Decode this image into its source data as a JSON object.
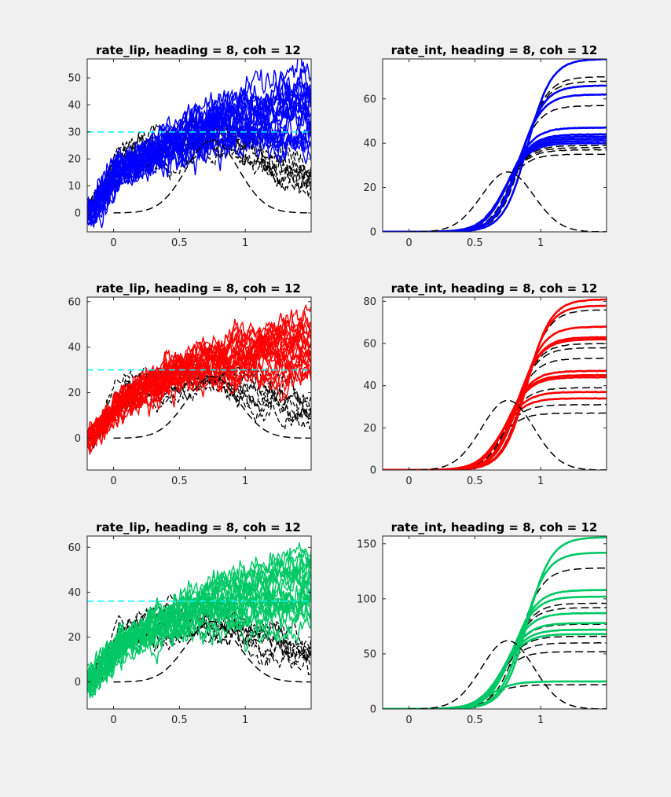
{
  "figure": {
    "background": "#f0f0f0",
    "axes_background": "#ffffff"
  },
  "chart_data": [
    {
      "id": "p11",
      "type": "line",
      "title": "rate_lip, heading = 8, coh = 12",
      "xlim": [
        -0.2,
        1.5
      ],
      "ylim": [
        -7,
        57
      ],
      "xticks": [
        0,
        0.5,
        1
      ],
      "xtick_labels": [
        "0",
        "0.5",
        "1"
      ],
      "yticks": [
        0,
        10,
        20,
        30,
        40,
        50
      ],
      "ytick_labels": [
        "0",
        "10",
        "20",
        "30",
        "40",
        "50"
      ],
      "grid": false,
      "series_color": "#0000ff",
      "threshold": {
        "y": 30,
        "color": "#00ffff",
        "style": "dashed"
      },
      "colored_traces": {
        "count": 22,
        "end_range": [
          28,
          56
        ],
        "noise": 4
      },
      "black_traces": {
        "count": 9,
        "peak": 30
      },
      "mean_curve": {
        "peak": 27,
        "peak_time": 0.75,
        "style": "dashed"
      }
    },
    {
      "id": "p12",
      "type": "line",
      "title": "rate_int, heading = 8, coh = 12",
      "xlim": [
        -0.2,
        1.5
      ],
      "ylim": [
        0,
        78
      ],
      "xticks": [
        0,
        0.5,
        1
      ],
      "xtick_labels": [
        "0",
        "0.5",
        "1"
      ],
      "yticks": [
        0,
        20,
        40,
        60
      ],
      "ytick_labels": [
        "0",
        "20",
        "40",
        "60"
      ],
      "grid": false,
      "series_color": "#0000ff",
      "colored_plateaus": [
        78,
        66,
        62,
        47,
        44,
        43,
        42,
        41,
        40
      ],
      "black_plateaus": [
        70,
        68,
        57,
        40,
        39,
        38,
        37,
        35
      ],
      "mean_curve": {
        "peak": 27,
        "peak_time": 0.75,
        "style": "dashed"
      }
    },
    {
      "id": "p21",
      "type": "line",
      "title": "rate_lip, heading = 8, coh = 12",
      "xlim": [
        -0.2,
        1.5
      ],
      "ylim": [
        -14,
        62
      ],
      "xticks": [
        0,
        0.5,
        1
      ],
      "xtick_labels": [
        "0",
        "0.5",
        "1"
      ],
      "yticks": [
        0,
        20,
        40,
        60
      ],
      "ytick_labels": [
        "0",
        "20",
        "40",
        "60"
      ],
      "grid": false,
      "series_color": "#ff0000",
      "threshold": {
        "y": 30,
        "color": "#00ffff",
        "style": "dashed"
      },
      "colored_traces": {
        "count": 22,
        "end_range": [
          30,
          60
        ],
        "noise": 4
      },
      "black_traces": {
        "count": 9,
        "peak": 30
      },
      "mean_curve": {
        "peak": 27,
        "peak_time": 0.75,
        "style": "dashed"
      }
    },
    {
      "id": "p22",
      "type": "line",
      "title": "rate_int, heading = 8, coh = 12",
      "xlim": [
        -0.2,
        1.5
      ],
      "ylim": [
        0,
        82
      ],
      "xticks": [
        0,
        0.5,
        1
      ],
      "xtick_labels": [
        "0",
        "0.5",
        "1"
      ],
      "yticks": [
        0,
        20,
        40,
        60,
        80
      ],
      "ytick_labels": [
        "0",
        "20",
        "40",
        "60",
        "80"
      ],
      "grid": false,
      "series_color": "#ff0000",
      "colored_plateaus": [
        81,
        78,
        68,
        63,
        62,
        47,
        45,
        44,
        37,
        34
      ],
      "black_plateaus": [
        76,
        60,
        58,
        53,
        39,
        31,
        27
      ],
      "mean_curve": {
        "peak": 33,
        "peak_time": 0.75,
        "style": "dashed"
      }
    },
    {
      "id": "p31",
      "type": "line",
      "title": "rate_lip, heading = 8, coh = 12",
      "xlim": [
        -0.2,
        1.5
      ],
      "ylim": [
        -12,
        65
      ],
      "xticks": [
        0,
        0.5,
        1
      ],
      "xtick_labels": [
        "0",
        "0.5",
        "1"
      ],
      "yticks": [
        0,
        20,
        40,
        60
      ],
      "ytick_labels": [
        "0",
        "20",
        "40",
        "60"
      ],
      "grid": false,
      "series_color": "#00c864",
      "threshold": {
        "y": 36,
        "color": "#00ffff",
        "style": "dashed"
      },
      "colored_traces": {
        "count": 22,
        "end_range": [
          26,
          62
        ],
        "noise": 4.5
      },
      "black_traces": {
        "count": 9,
        "peak": 30
      },
      "mean_curve": {
        "peak": 27,
        "peak_time": 0.75,
        "style": "dashed"
      }
    },
    {
      "id": "p32",
      "type": "line",
      "title": "rate_int, heading = 8, coh = 12",
      "xlim": [
        -0.2,
        1.5
      ],
      "ylim": [
        0,
        157
      ],
      "xticks": [
        0,
        0.5,
        1
      ],
      "xtick_labels": [
        "0",
        "0.5",
        "1"
      ],
      "yticks": [
        0,
        50,
        100,
        150
      ],
      "ytick_labels": [
        "0",
        "50",
        "100",
        "150"
      ],
      "grid": false,
      "series_color": "#00c864",
      "colored_plateaus": [
        156,
        142,
        108,
        102,
        87,
        78,
        72,
        68,
        25
      ],
      "black_plateaus": [
        128,
        96,
        92,
        77,
        66,
        60,
        52,
        22
      ],
      "mean_curve": {
        "peak": 62,
        "peak_time": 0.75,
        "style": "dashed"
      }
    }
  ]
}
